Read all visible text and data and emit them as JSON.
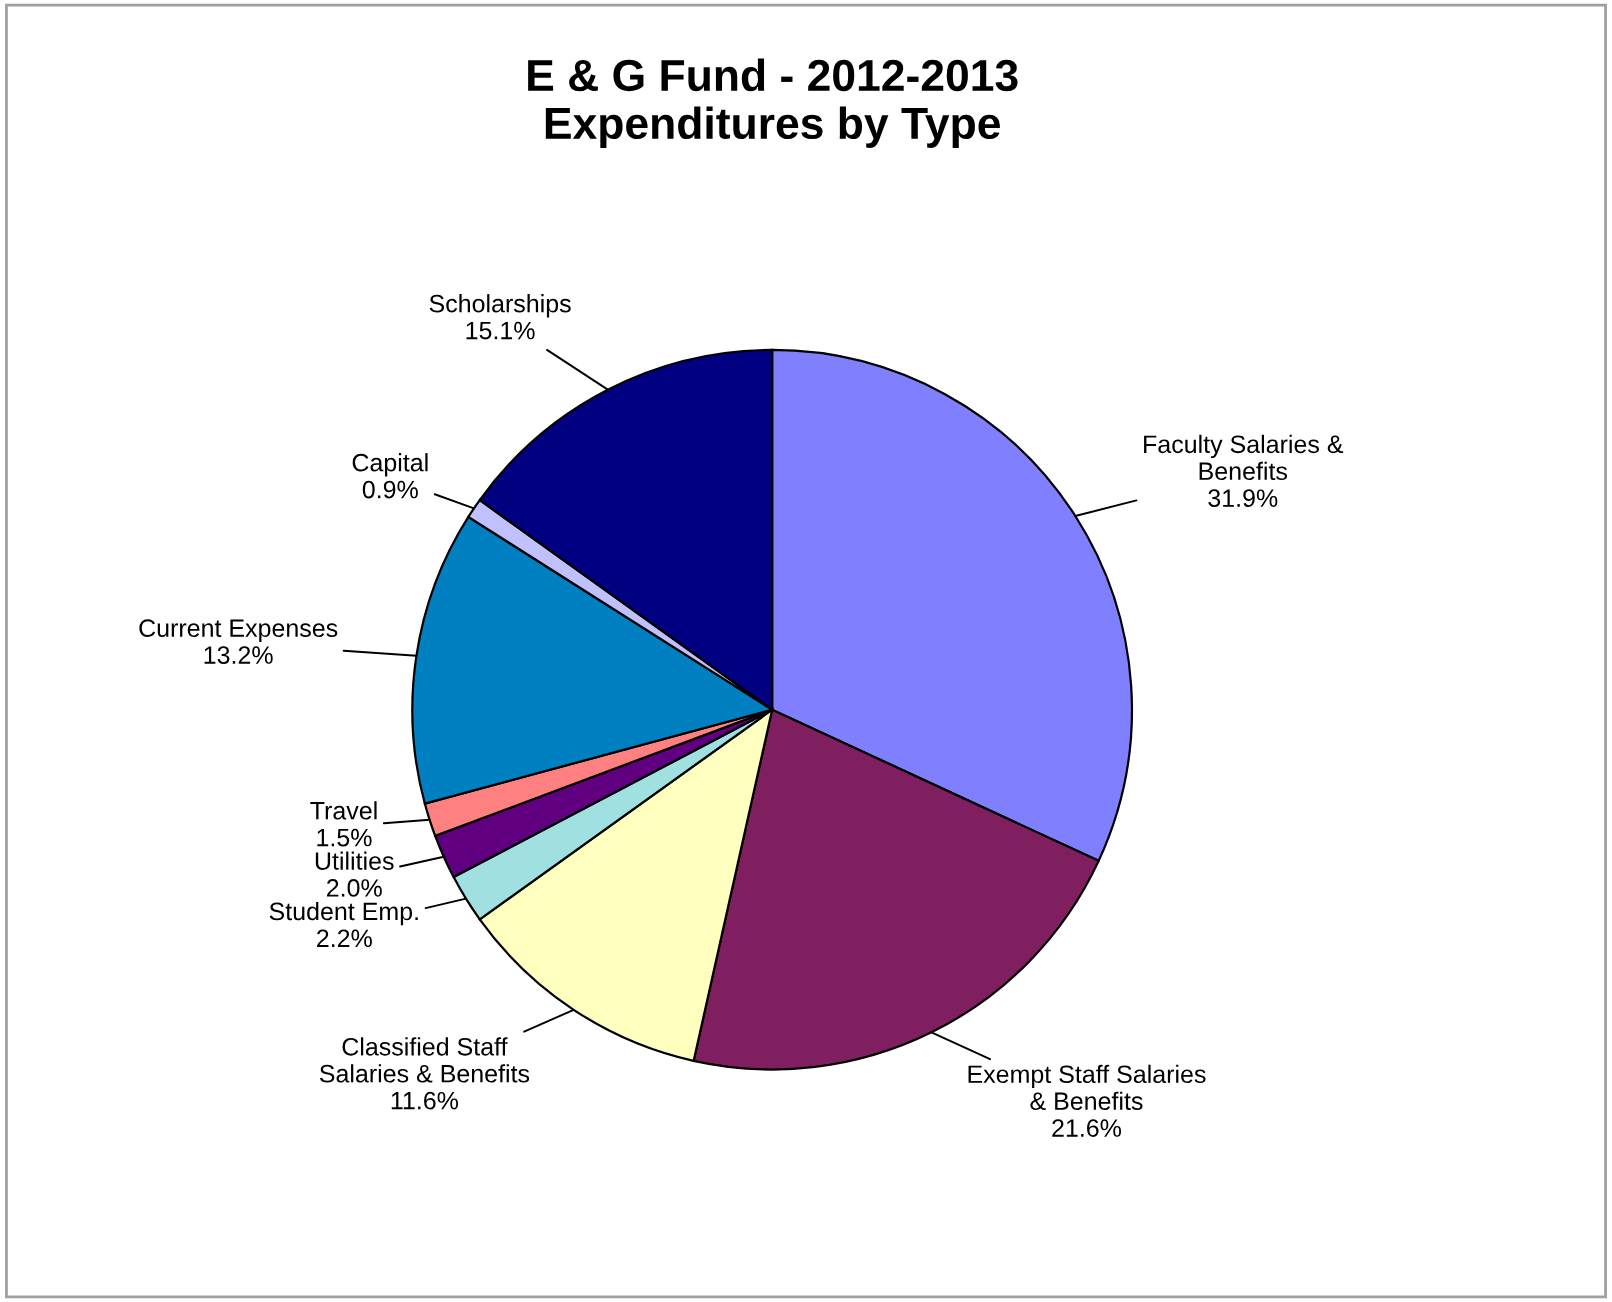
{
  "chart_data": {
    "type": "pie",
    "title": "E & G Fund - 2012-2013\nExpenditures by Type",
    "categories": [
      "Faculty Salaries & Benefits",
      "Exempt Staff Salaries & Benefits",
      "Classified Staff Salaries & Benefits",
      "Student Emp.",
      "Utilities",
      "Travel",
      "Current Expenses",
      "Capital",
      "Scholarships"
    ],
    "values": [
      31.9,
      21.6,
      11.6,
      2.2,
      2.0,
      1.5,
      13.2,
      0.9,
      15.1
    ],
    "value_labels": [
      "31.9%",
      "21.6%",
      "11.6%",
      "2.2%",
      "2.0%",
      "1.5%",
      "13.2%",
      "0.9%",
      "15.1%"
    ],
    "colors": [
      "#8080ff",
      "#801f5f",
      "#ffffc0",
      "#a0e0e0",
      "#600080",
      "#ff8080",
      "#0080c0",
      "#c0c0ff",
      "#000080"
    ],
    "legend": false
  }
}
